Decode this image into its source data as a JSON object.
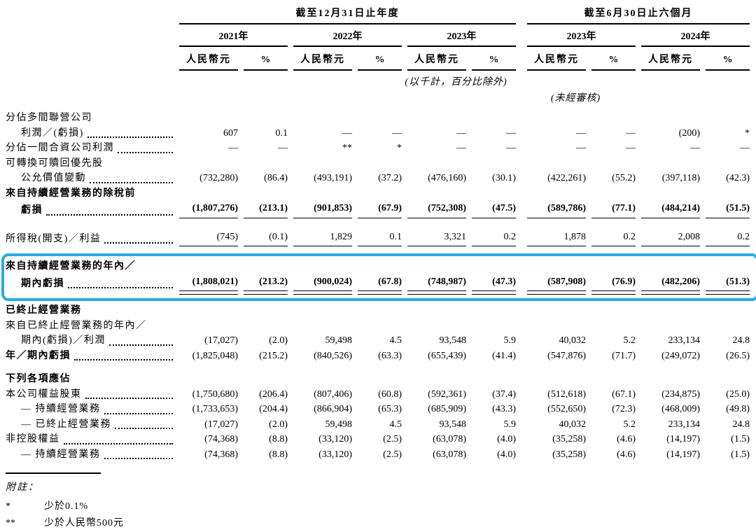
{
  "page": {
    "background": "#ffffff",
    "text_color": "#000000",
    "highlight_color": "#29ABE2"
  },
  "table": {
    "groups": [
      {
        "label": "截至12月31日止年度",
        "pairs": 3
      },
      {
        "label": "截至6月30日止六個月",
        "pairs": 2
      }
    ],
    "periods": [
      "2021年",
      "2022年",
      "2023年",
      "2023年",
      "2024年"
    ],
    "unit_label": "人民幣元",
    "percent_label": "%",
    "scale_note": "(以千計，百分比除外)",
    "unaudited_note": "(未經審核)",
    "rows": [
      {
        "type": "label",
        "text": "分佔多間聯營公司"
      },
      {
        "type": "data",
        "text": "利潤／(虧損)",
        "indent": true,
        "dots": true,
        "values": [
          "607",
          "0.1",
          "—",
          "—",
          "—",
          "—",
          "—",
          "—",
          "(200)",
          "*"
        ]
      },
      {
        "type": "data",
        "text": "分佔一間合資公司利潤",
        "dots": true,
        "values": [
          "—",
          "—",
          "**",
          "*",
          "—",
          "—",
          "—",
          "—",
          "—",
          "—"
        ]
      },
      {
        "type": "label",
        "text": "可轉換可贖回優先股"
      },
      {
        "type": "data",
        "text": "公允價值變動",
        "indent": true,
        "dots": true,
        "values": [
          "(732,280)",
          "(86.4)",
          "(493,191)",
          "(37.2)",
          "(476,160)",
          "(30.1)",
          "(422,261)",
          "(55.2)",
          "(397,118)",
          "(42.3)"
        ]
      },
      {
        "type": "label",
        "text": "來自持續經營業務的除稅前",
        "bold": true
      },
      {
        "type": "data",
        "text": "虧損",
        "indent": true,
        "dots": true,
        "bold": true,
        "underline": "single",
        "values": [
          "(1,807,276)",
          "(213.1)",
          "(901,853)",
          "(67.9)",
          "(752,308)",
          "(47.5)",
          "(589,786)",
          "(77.1)",
          "(484,214)",
          "(51.5)"
        ]
      },
      {
        "type": "data",
        "text": "所得稅(開支)／利益",
        "dots": true,
        "underline": "single",
        "space_before": 16,
        "values": [
          "(745)",
          "(0.1)",
          "1,829",
          "0.1",
          "3,321",
          "0.2",
          "1,878",
          "0.2",
          "2,008",
          "0.2"
        ]
      },
      {
        "type": "label",
        "text": "來自持續經營業務的年內／",
        "bold": true,
        "box": true
      },
      {
        "type": "data",
        "text": "期內虧損",
        "indent": true,
        "dots": true,
        "bold": true,
        "underline": "double",
        "box": true,
        "values": [
          "(1,808,021)",
          "(213.2)",
          "(900,024)",
          "(67.8)",
          "(748,987)",
          "(47.3)",
          "(587,908)",
          "(76.9)",
          "(482,206)",
          "(51.3)"
        ]
      },
      {
        "type": "section",
        "text": "已終止經營業務"
      },
      {
        "type": "label",
        "text": "來自已終止經營業務的年內／"
      },
      {
        "type": "data",
        "text": "期內(虧損)／利潤",
        "indent": true,
        "dots": true,
        "values": [
          "(17,027)",
          "(2.0)",
          "59,498",
          "4.5",
          "93,548",
          "5.9",
          "40,032",
          "5.2",
          "233,134",
          "24.8"
        ]
      },
      {
        "type": "data",
        "text": "年／期內虧損",
        "bold_label": true,
        "dots": true,
        "values": [
          "(1,825,048)",
          "(215.2)",
          "(840,526)",
          "(63.3)",
          "(655,439)",
          "(41.4)",
          "(547,876)",
          "(71.7)",
          "(249,072)",
          "(26.5)"
        ]
      },
      {
        "type": "section",
        "text": "下列各項應佔",
        "space_before": 12
      },
      {
        "type": "data",
        "text": "本公司權益股東",
        "dots": true,
        "values": [
          "(1,750,680)",
          "(206.4)",
          "(807,406)",
          "(60.8)",
          "(592,361)",
          "(37.4)",
          "(512,618)",
          "(67.1)",
          "(234,875)",
          "(25.0)"
        ]
      },
      {
        "type": "data",
        "text": "— 持續經營業務",
        "indent": true,
        "dots": true,
        "values": [
          "(1,733,653)",
          "(204.4)",
          "(866,904)",
          "(65.3)",
          "(685,909)",
          "(43.3)",
          "(552,650)",
          "(72.3)",
          "(468,009)",
          "(49.8)"
        ]
      },
      {
        "type": "data",
        "text": "— 已終止經營業務",
        "indent": true,
        "dots": true,
        "values": [
          "(17,027)",
          "(2.0)",
          "59,498",
          "4.5",
          "93,548",
          "5.9",
          "40,032",
          "5.2",
          "233,134",
          "24.8"
        ]
      },
      {
        "type": "data",
        "text": "非控股權益",
        "dots": true,
        "values": [
          "(74,368)",
          "(8.8)",
          "(33,120)",
          "(2.5)",
          "(63,078)",
          "(4.0)",
          "(35,258)",
          "(4.6)",
          "(14,197)",
          "(1.5)"
        ]
      },
      {
        "type": "data",
        "text": "— 持續經營業務",
        "indent": true,
        "dots": true,
        "values": [
          "(74,368)",
          "(8.8)",
          "(33,120)",
          "(2.5)",
          "(63,078)",
          "(4.0)",
          "(35,258)",
          "(4.6)",
          "(14,197)",
          "(1.5)"
        ]
      }
    ]
  },
  "footnotes": {
    "title": "附註：",
    "items": [
      {
        "marker": "*",
        "text": "少於0.1%"
      },
      {
        "marker": "**",
        "text": "少於人民幣500元"
      }
    ]
  }
}
